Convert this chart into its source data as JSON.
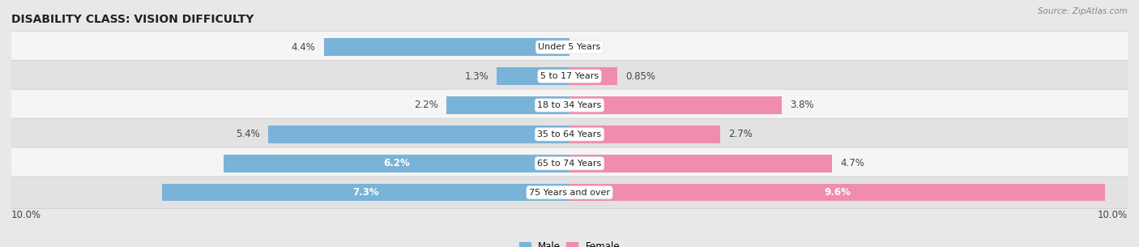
{
  "title": "DISABILITY CLASS: VISION DIFFICULTY",
  "source": "Source: ZipAtlas.com",
  "categories": [
    "Under 5 Years",
    "5 to 17 Years",
    "18 to 34 Years",
    "35 to 64 Years",
    "65 to 74 Years",
    "75 Years and over"
  ],
  "male_values": [
    4.4,
    1.3,
    2.2,
    5.4,
    6.2,
    7.3
  ],
  "female_values": [
    0.0,
    0.85,
    3.8,
    2.7,
    4.7,
    9.6
  ],
  "male_color": "#7ab3d8",
  "female_color": "#f08cad",
  "bg_color": "#e8e8e8",
  "row_bg_odd": "#f5f5f5",
  "row_bg_even": "#e2e2e2",
  "max_val": 10.0,
  "title_fontsize": 10,
  "bar_fontsize": 8.5,
  "category_fontsize": 8,
  "legend_fontsize": 8.5
}
